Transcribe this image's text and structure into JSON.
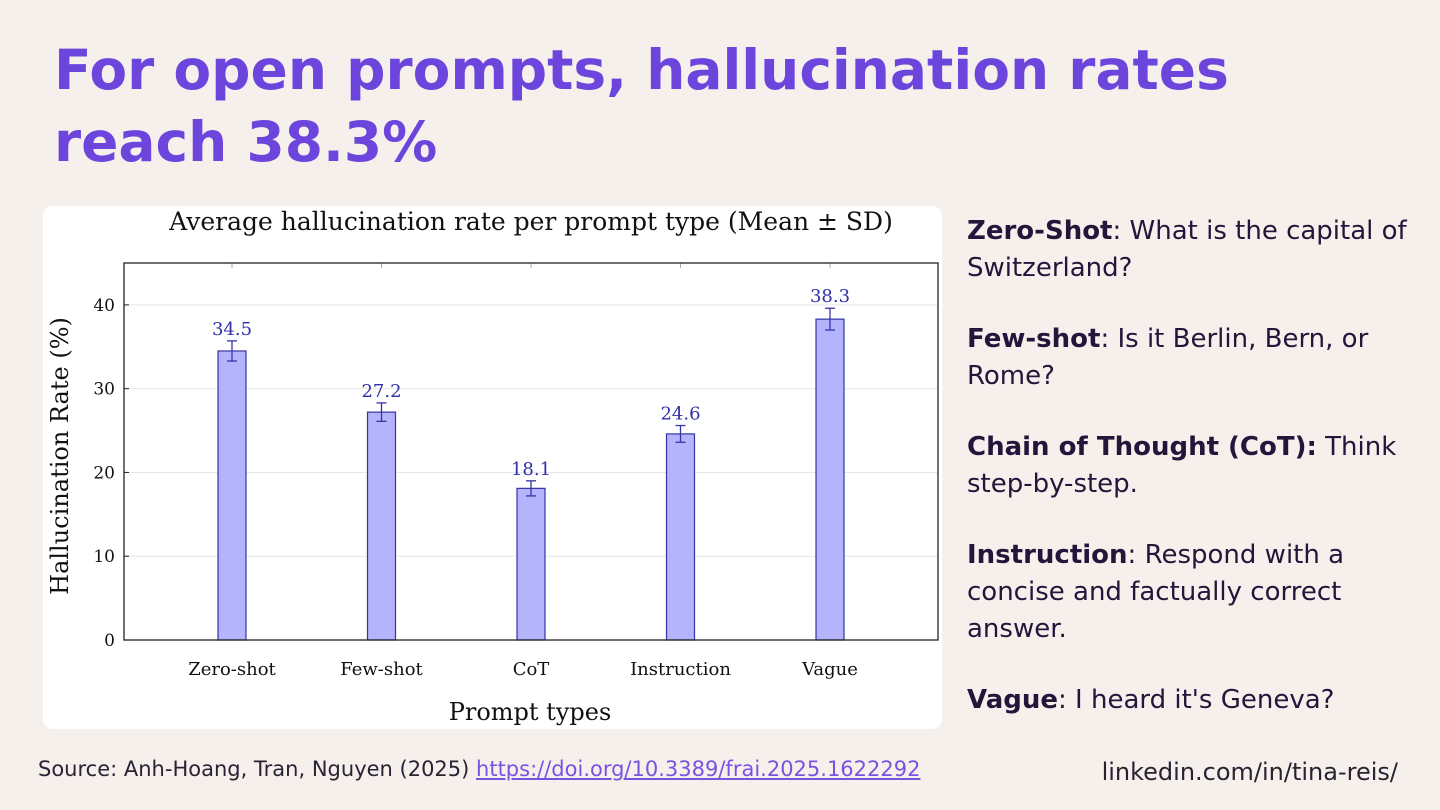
{
  "headline": "For open prompts, hallucination rates reach 38.3%",
  "definitions": [
    {
      "term": "Zero-Shot",
      "separator": ":",
      "text": " What is the capital of Switzerland?"
    },
    {
      "term": "Few-shot",
      "separator": ":",
      "text": " Is it Berlin, Bern, or Rome?"
    },
    {
      "term": "Chain of Thought (CoT):",
      "separator": "",
      "text": " Think step-by-step."
    },
    {
      "term": "Instruction",
      "separator": ":",
      "text": " Respond with a concise and factually correct answer."
    },
    {
      "term": "Vague",
      "separator": ":",
      "text": " I heard it's Geneva?"
    }
  ],
  "source": {
    "prefix": "Source: Anh-Hoang, Tran, Nguyen (2025) ",
    "link_text": "https://doi.org/10.3389/frai.2025.1622292"
  },
  "handle": "linkedin.com/in/tina-reis/",
  "colors": {
    "accent": "#6c45dc",
    "background": "#f6f0ec",
    "bar_fill": "#b3b4fb",
    "bar_stroke": "#3434a8",
    "label": "#2f2fa8"
  },
  "chart_data": {
    "type": "bar",
    "title": "Average hallucination rate per prompt type (Mean ± SD)",
    "xlabel": "Prompt types",
    "ylabel": "Hallucination Rate (%)",
    "categories": [
      "Zero-shot",
      "Few-shot",
      "CoT",
      "Instruction",
      "Vague"
    ],
    "values": [
      34.5,
      27.2,
      18.1,
      24.6,
      38.3
    ],
    "value_labels": [
      "34.5",
      "27.2",
      "18.1",
      "24.6",
      "38.3"
    ],
    "errors": [
      1.2,
      1.1,
      0.9,
      1.0,
      1.3
    ],
    "ylim": [
      0,
      45
    ],
    "yticks": [
      0,
      10,
      20,
      30,
      40
    ],
    "grid": true,
    "legend": "none"
  }
}
